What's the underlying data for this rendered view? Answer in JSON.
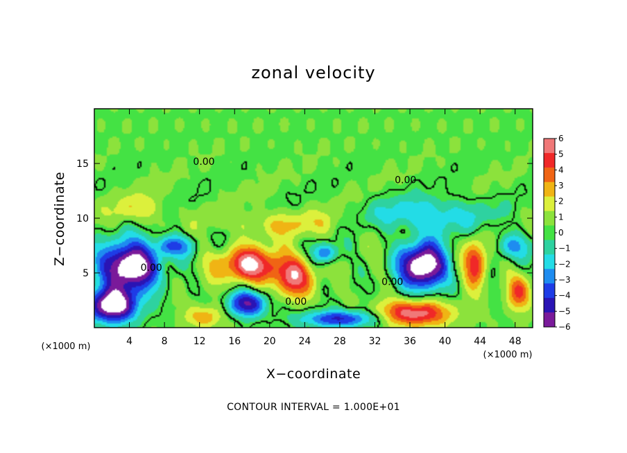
{
  "chart_data": {
    "type": "heatmap",
    "title": "zonal velocity",
    "xlabel": "X−coordinate",
    "ylabel": "Z−coordinate",
    "x_unit": "(×1000 m)",
    "y_unit": "(×1000 m)",
    "xlim": [
      0,
      50
    ],
    "ylim": [
      0,
      20
    ],
    "x_ticks": [
      4,
      8,
      12,
      16,
      20,
      24,
      28,
      32,
      36,
      40,
      44,
      48
    ],
    "y_ticks": [
      5,
      10,
      15
    ],
    "colorbar": {
      "levels": [
        -6,
        -5,
        -4,
        -3,
        -2,
        -1,
        0,
        1,
        2,
        3,
        4,
        5,
        6
      ],
      "tick_labels": [
        "6",
        "5",
        "4",
        "3",
        "2",
        "1",
        "0",
        "−1",
        "−2",
        "−3",
        "−4",
        "−5",
        "−6"
      ],
      "colors": [
        "#7a1a9a",
        "#2a14b4",
        "#1e3ce6",
        "#1e8cf0",
        "#23dce6",
        "#2ed2a0",
        "#44e244",
        "#8ce23c",
        "#dcf03c",
        "#f0b414",
        "#f06414",
        "#f02828",
        "#f07878"
      ]
    },
    "contour_labels": [
      {
        "text": "0.00",
        "x": 12.5,
        "y": 15.2
      },
      {
        "text": "0.00",
        "x": 35.5,
        "y": 13.5
      },
      {
        "text": "0.00",
        "x": 6.5,
        "y": 5.5
      },
      {
        "text": "0.00",
        "x": 34.0,
        "y": 4.2
      },
      {
        "text": "0.00",
        "x": 23.0,
        "y": 2.4
      }
    ],
    "features": [
      {
        "sign": "neg",
        "peak": -9,
        "x": 4.0,
        "y": 5.6,
        "rx": 3.2,
        "ry": 2.2
      },
      {
        "sign": "neg",
        "peak": -8,
        "x": 2.0,
        "y": 2.0,
        "rx": 3.0,
        "ry": 1.6
      },
      {
        "sign": "neg",
        "peak": -9,
        "x": 37.5,
        "y": 5.6,
        "rx": 2.6,
        "ry": 2.1
      },
      {
        "sign": "neg",
        "peak": -6,
        "x": 17.5,
        "y": 2.2,
        "rx": 2.2,
        "ry": 1.2
      },
      {
        "sign": "neg",
        "peak": -5,
        "x": 28.0,
        "y": 0.8,
        "rx": 4.5,
        "ry": 0.8
      },
      {
        "sign": "neg",
        "peak": -4,
        "x": 9.0,
        "y": 7.5,
        "rx": 2.2,
        "ry": 1.0
      },
      {
        "sign": "neg",
        "peak": -3,
        "x": 38.0,
        "y": 10.3,
        "rx": 6.5,
        "ry": 1.6
      },
      {
        "sign": "neg",
        "peak": -3,
        "x": 47.5,
        "y": 7.5,
        "rx": 2.0,
        "ry": 1.2
      },
      {
        "sign": "neg",
        "peak": -4,
        "x": 26.5,
        "y": 6.8,
        "rx": 1.4,
        "ry": 0.9
      },
      {
        "sign": "pos",
        "peak": 6,
        "x": 17.8,
        "y": 5.7,
        "rx": 3.8,
        "ry": 1.6
      },
      {
        "sign": "pos",
        "peak": 5,
        "x": 22.8,
        "y": 4.5,
        "rx": 2.3,
        "ry": 1.8
      },
      {
        "sign": "pos",
        "peak": 5,
        "x": 43.5,
        "y": 5.8,
        "rx": 1.3,
        "ry": 2.2
      },
      {
        "sign": "pos",
        "peak": 6,
        "x": 36.5,
        "y": 1.3,
        "rx": 4.0,
        "ry": 1.2
      },
      {
        "sign": "pos",
        "peak": 4,
        "x": 48.5,
        "y": 3.2,
        "rx": 1.4,
        "ry": 1.6
      },
      {
        "sign": "pos",
        "peak": 3,
        "x": 12.5,
        "y": 1.0,
        "rx": 2.0,
        "ry": 1.0
      },
      {
        "sign": "pos",
        "peak": 2,
        "x": 22.0,
        "y": 9.5,
        "rx": 6.5,
        "ry": 1.2
      },
      {
        "sign": "pos",
        "peak": 2,
        "x": 5.0,
        "y": 10.8,
        "rx": 3.0,
        "ry": 1.3
      }
    ]
  },
  "footer": "CONTOUR INTERVAL = 1.000E+01"
}
